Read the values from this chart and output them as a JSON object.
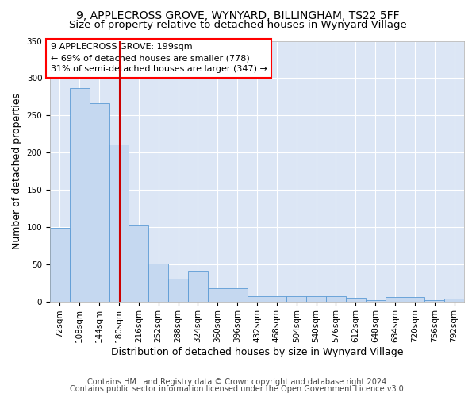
{
  "title1": "9, APPLECROSS GROVE, WYNYARD, BILLINGHAM, TS22 5FF",
  "title2": "Size of property relative to detached houses in Wynyard Village",
  "xlabel": "Distribution of detached houses by size in Wynyard Village",
  "ylabel": "Number of detached properties",
  "footnote1": "Contains HM Land Registry data © Crown copyright and database right 2024.",
  "footnote2": "Contains public sector information licensed under the Open Government Licence v3.0.",
  "annotation_line1": "9 APPLECROSS GROVE: 199sqm",
  "annotation_line2": "← 69% of detached houses are smaller (778)",
  "annotation_line3": "31% of semi-detached houses are larger (347) →",
  "bar_color": "#c5d8f0",
  "bar_edge_color": "#5b9bd5",
  "vline_color": "#cc0000",
  "vline_x": 199,
  "background_color": "#dce6f5",
  "fig_background_color": "#ffffff",
  "categories": [
    72,
    108,
    144,
    180,
    216,
    252,
    288,
    324,
    360,
    396,
    432,
    468,
    504,
    540,
    576,
    612,
    648,
    684,
    720,
    756,
    792
  ],
  "bin_width": 36,
  "values": [
    99,
    287,
    266,
    211,
    102,
    51,
    31,
    41,
    18,
    18,
    7,
    7,
    7,
    7,
    7,
    5,
    2,
    6,
    6,
    2,
    4
  ],
  "ylim": [
    0,
    350
  ],
  "yticks": [
    0,
    50,
    100,
    150,
    200,
    250,
    300,
    350
  ],
  "grid_color": "#ffffff",
  "title1_fontsize": 10,
  "title2_fontsize": 9.5,
  "axis_label_fontsize": 9,
  "tick_fontsize": 7.5,
  "annotation_fontsize": 8,
  "footnote_fontsize": 7
}
